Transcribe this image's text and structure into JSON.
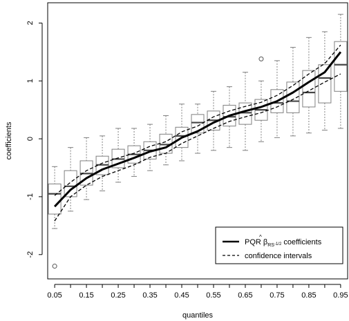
{
  "chart_data": {
    "type": "boxplot",
    "xlabel": "quantiles",
    "ylabel": "coefficients",
    "x": [
      0.05,
      0.1,
      0.15,
      0.2,
      0.25,
      0.3,
      0.35,
      0.4,
      0.45,
      0.5,
      0.55,
      0.6,
      0.65,
      0.7,
      0.75,
      0.8,
      0.85,
      0.9,
      0.95
    ],
    "x_tick_labels": [
      "0.05",
      "0.15",
      "0.25",
      "0.35",
      "0.45",
      "0.55",
      "0.65",
      "0.75",
      "0.85",
      "0.95"
    ],
    "y_tick_labels": [
      "-2",
      "-1",
      "0",
      "1",
      "2"
    ],
    "xlim": [
      0.028,
      0.972
    ],
    "ylim": [
      -2.42,
      2.35
    ],
    "grid": false,
    "boxes": [
      {
        "min": -1.55,
        "q1": -1.3,
        "median": -0.95,
        "q3": -0.78,
        "max": -0.48,
        "outliers": [
          -2.2
        ]
      },
      {
        "min": -1.25,
        "q1": -1.0,
        "median": -0.82,
        "q3": -0.55,
        "max": -0.15,
        "outliers": []
      },
      {
        "min": -1.05,
        "q1": -0.8,
        "median": -0.6,
        "q3": -0.38,
        "max": 0.02,
        "outliers": []
      },
      {
        "min": -0.9,
        "q1": -0.62,
        "median": -0.45,
        "q3": -0.3,
        "max": 0.05,
        "outliers": []
      },
      {
        "min": -0.75,
        "q1": -0.5,
        "median": -0.35,
        "q3": -0.18,
        "max": 0.18,
        "outliers": []
      },
      {
        "min": -0.65,
        "q1": -0.42,
        "median": -0.27,
        "q3": -0.12,
        "max": 0.18,
        "outliers": []
      },
      {
        "min": -0.55,
        "q1": -0.35,
        "median": -0.2,
        "q3": -0.05,
        "max": 0.25,
        "outliers": []
      },
      {
        "min": -0.45,
        "q1": -0.25,
        "median": -0.1,
        "q3": 0.08,
        "max": 0.4,
        "outliers": []
      },
      {
        "min": -0.38,
        "q1": -0.15,
        "median": 0.05,
        "q3": 0.2,
        "max": 0.6,
        "outliers": []
      },
      {
        "min": -0.25,
        "q1": 0.1,
        "median": 0.28,
        "q3": 0.42,
        "max": 0.6,
        "outliers": []
      },
      {
        "min": -0.2,
        "q1": 0.15,
        "median": 0.32,
        "q3": 0.48,
        "max": 0.82,
        "outliers": []
      },
      {
        "min": -0.15,
        "q1": 0.22,
        "median": 0.38,
        "q3": 0.58,
        "max": 0.9,
        "outliers": []
      },
      {
        "min": -0.2,
        "q1": 0.25,
        "median": 0.45,
        "q3": 0.62,
        "max": 1.15,
        "outliers": []
      },
      {
        "min": -0.05,
        "q1": 0.32,
        "median": 0.5,
        "q3": 0.68,
        "max": 1.0,
        "outliers": [
          1.38
        ]
      },
      {
        "min": 0.02,
        "q1": 0.45,
        "median": 0.62,
        "q3": 0.85,
        "max": 1.35,
        "outliers": []
      },
      {
        "min": 0.05,
        "q1": 0.45,
        "median": 0.65,
        "q3": 0.98,
        "max": 1.58,
        "outliers": []
      },
      {
        "min": 0.1,
        "q1": 0.55,
        "median": 0.8,
        "q3": 1.18,
        "max": 1.75,
        "outliers": []
      },
      {
        "min": 0.15,
        "q1": 0.62,
        "median": 1.05,
        "q3": 1.28,
        "max": 1.85,
        "outliers": []
      },
      {
        "min": 0.18,
        "q1": 0.82,
        "median": 1.28,
        "q3": 1.68,
        "max": 2.15,
        "outliers": []
      }
    ],
    "series": [
      {
        "name": "PQR β̂RS-1/2 coefficients",
        "style": "solid-thick",
        "values": [
          -1.17,
          -0.88,
          -0.68,
          -0.53,
          -0.43,
          -0.33,
          -0.22,
          -0.15,
          0.02,
          0.13,
          0.28,
          0.4,
          0.48,
          0.55,
          0.65,
          0.8,
          0.98,
          1.15,
          1.5
        ]
      },
      {
        "name": "confidence intervals (upper)",
        "style": "dashed",
        "values": [
          -0.98,
          -0.75,
          -0.55,
          -0.42,
          -0.33,
          -0.25,
          -0.13,
          -0.05,
          0.12,
          0.22,
          0.38,
          0.48,
          0.56,
          0.63,
          0.75,
          0.92,
          1.12,
          1.3,
          1.62
        ]
      },
      {
        "name": "confidence intervals (lower)",
        "style": "dashed",
        "values": [
          -1.42,
          -1.0,
          -0.8,
          -0.65,
          -0.55,
          -0.45,
          -0.32,
          -0.25,
          -0.08,
          0.05,
          0.18,
          0.3,
          0.38,
          0.45,
          0.55,
          0.68,
          0.83,
          0.98,
          1.12
        ]
      }
    ],
    "legend": {
      "position": "bottom-right",
      "entry1_prefix": "PQR ",
      "entry1_beta": "β",
      "entry1_hat": "^",
      "entry1_sub": "RS",
      "entry1_sup": "-1/2",
      "entry1_suffix": " coefficients",
      "entry2": "confidence intervals"
    },
    "colors": {
      "box": "#7f7f7f",
      "line": "#000000",
      "axis": "#000000"
    }
  }
}
